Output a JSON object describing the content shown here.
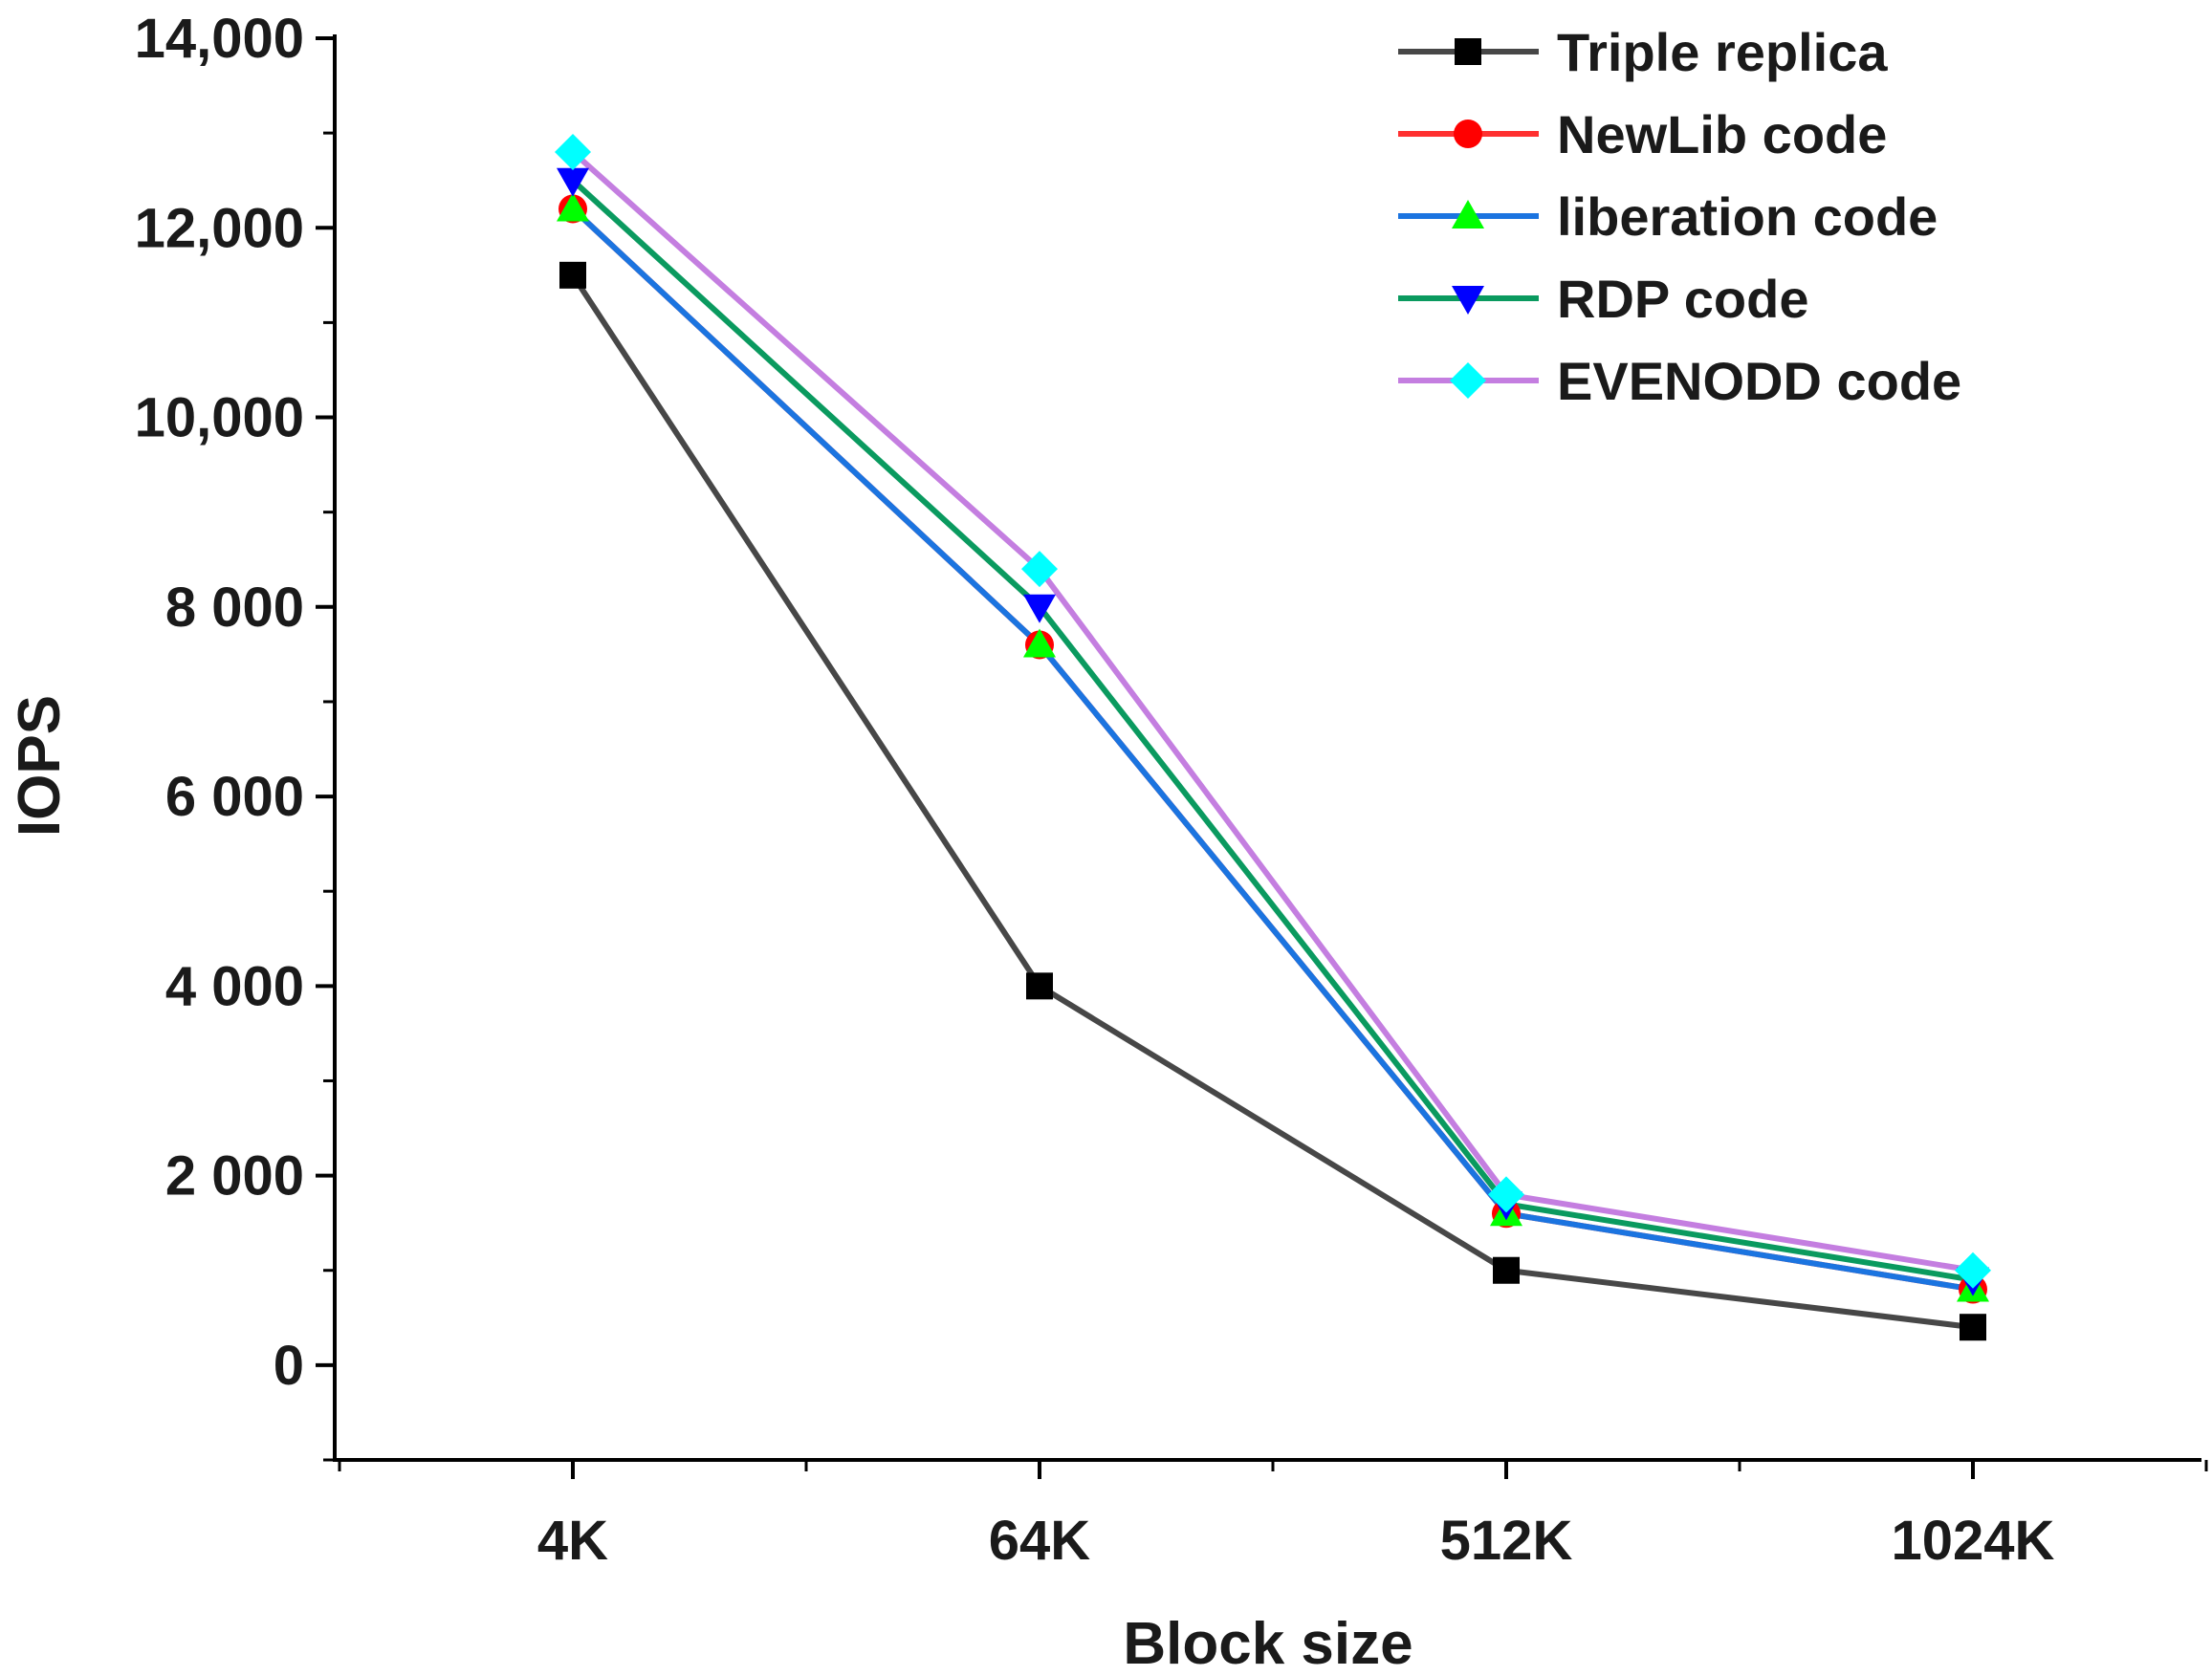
{
  "chart_data": {
    "type": "line",
    "xlabel": "Block size",
    "ylabel": "IOPS",
    "categories": [
      "4K",
      "64K",
      "512K",
      "1024K"
    ],
    "ylim": [
      -1000,
      14000
    ],
    "yticks": [
      0,
      2000,
      4000,
      6000,
      8000,
      10000,
      12000,
      14000
    ],
    "ytick_labels": [
      "0",
      "2 000",
      "4 000",
      "6 000",
      "8 000",
      "10,000",
      "12,000",
      "14,000"
    ],
    "legend_position": "top-right",
    "series": [
      {
        "name": "Triple replica",
        "values": [
          11500,
          4000,
          1000,
          400
        ],
        "line_color": "#474747",
        "marker_color": "#000000",
        "marker": "square"
      },
      {
        "name": "NewLib code",
        "values": [
          12200,
          7600,
          1600,
          800
        ],
        "line_color": "#ff3030",
        "marker_color": "#ff0000",
        "marker": "circle"
      },
      {
        "name": "liberation code",
        "values": [
          12200,
          7600,
          1600,
          800
        ],
        "line_color": "#1b74e0",
        "marker_color": "#00ff00",
        "marker": "triangle-up"
      },
      {
        "name": "RDP code",
        "values": [
          12500,
          8000,
          1700,
          900
        ],
        "line_color": "#0a9a5f",
        "marker_color": "#0000ff",
        "marker": "triangle-down"
      },
      {
        "name": "EVENODD code",
        "values": [
          12800,
          8400,
          1800,
          1000
        ],
        "line_color": "#c47ee0",
        "marker_color": "#00ffff",
        "marker": "diamond"
      }
    ]
  }
}
